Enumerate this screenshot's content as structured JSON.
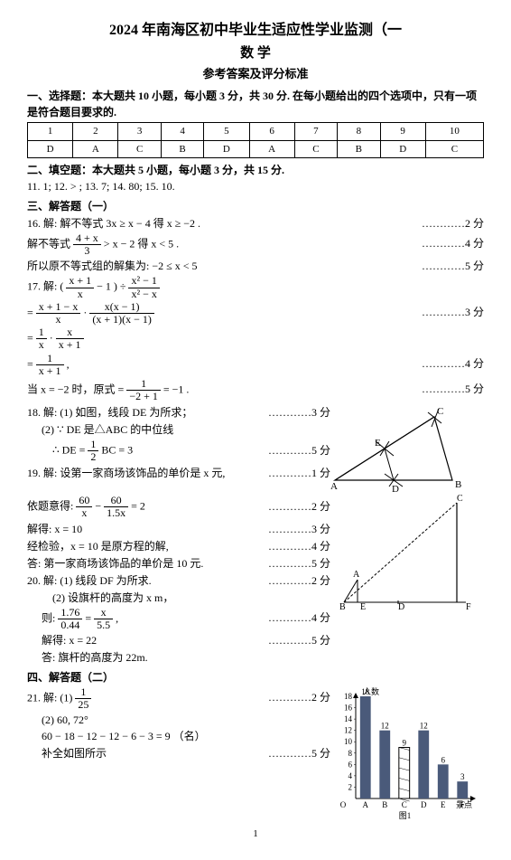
{
  "header": {
    "title": "2024 年南海区初中毕业生适应性学业监测（一",
    "subject": "数   学",
    "ans_title": "参考答案及评分标准"
  },
  "sec1": {
    "head": "一、选择题：本大题共 10 小题，每小题 3 分，共 30 分. 在每小题给出的四个选项中，只有一项是符合题目要求的.",
    "nums": [
      "1",
      "2",
      "3",
      "4",
      "5",
      "6",
      "7",
      "8",
      "9",
      "10"
    ],
    "ans": [
      "D",
      "A",
      "C",
      "B",
      "D",
      "A",
      "C",
      "B",
      "D",
      "C"
    ]
  },
  "sec2": {
    "head": "二、填空题：本大题共 5 小题，每小题 3 分，共 15 分.",
    "items": "11.  1;   12.  > ;   13.  7;   14.  80;   15.  10."
  },
  "sec3": {
    "head": "三、解答题（一）",
    "q16a_l": "16. 解: 解不等式 3x ≥ x − 4 得   x ≥ −2 .",
    "q16a_p": "…………2 分",
    "q16b_pre": "解不等式 ",
    "q16b_frac_num": "4 + x",
    "q16b_frac_den": "3",
    "q16b_post": " > x − 2 得   x < 5 .",
    "q16b_p": "…………4 分",
    "q16c_l": "所以原不等式组的解集为:   −2 ≤ x < 5",
    "q16c_p": "…………5 分",
    "q17a_pre": "17. 解:  ( ",
    "q17a_f1n": "x + 1",
    "q17a_f1d": "x",
    "q17a_mid": " − 1 ) ÷ ",
    "q17a_f2n": "x² − 1",
    "q17a_f2d": "x² − x",
    "q17b_pre": "= ",
    "q17b_f1n": "x + 1 − x",
    "q17b_f1d": "x",
    "q17b_mid": " · ",
    "q17b_f2n": "x(x − 1)",
    "q17b_f2d": "(x + 1)(x − 1)",
    "q17b_p": "…………3 分",
    "q17c_pre": "= ",
    "q17c_f1n": "1",
    "q17c_f1d": "x",
    "q17c_mid": " · ",
    "q17c_f2n": "x",
    "q17c_f2d": "x + 1",
    "q17d_pre": "= ",
    "q17d_fn": "1",
    "q17d_fd": "x + 1",
    "q17d_post": " ,",
    "q17d_p": "…………4 分",
    "q17e_pre": "当 x = −2 时，原式 = ",
    "q17e_fn": "1",
    "q17e_fd": "−2 + 1",
    "q17e_post": " = −1 .",
    "q17e_p": "…………5 分",
    "q18a_l": "18.  解:   (1) 如图，线段 DE 为所求；",
    "q18a_p": "…………3 分",
    "q18b_l": "(2) ∵ DE 是△ABC 的中位线",
    "q18c_pre": "∴   DE = ",
    "q18c_fn": "1",
    "q18c_fd": "2",
    "q18c_post": "BC = 3",
    "q18c_p": "…………5 分",
    "q19a_l": "19.  解: 设第一家商场该饰品的单价是 x 元,",
    "q19a_p": "…………1 分",
    "q19b_pre": "依题意得: ",
    "q19b_f1n": "60",
    "q19b_f1d": "x",
    "q19b_mid": " − ",
    "q19b_f2n": "60",
    "q19b_f2d": "1.5x",
    "q19b_post": " = 2",
    "q19b_p": "…………2 分",
    "q19c_l": "解得:   x = 10",
    "q19c_p": "…………3 分",
    "q19d_l": "经检验，x = 10 是原方程的解,",
    "q19d_p": "…………4 分",
    "q19e_l": "答: 第一家商场该饰品的单价是 10 元.",
    "q19e_p": "…………5 分",
    "q20a_l": "20.  解:    (1)  线段 DF 为所求.",
    "q20a_p": "…………2 分",
    "q20b_l": "(2) 设旗杆的高度为 x m，",
    "q20c_pre": "则: ",
    "q20c_f1n": "1.76",
    "q20c_f1d": "0.44",
    "q20c_mid": " = ",
    "q20c_f2n": "x",
    "q20c_f2d": "5.5",
    "q20c_post": " ,",
    "q20c_p": "…………4 分",
    "q20d_l": "解得:   x = 22",
    "q20d_p": "…………5 分",
    "q20e_l": "答:  旗杆的高度为 22m."
  },
  "sec4": {
    "head": "四、解答题（二）",
    "q21a_pre": "21.  解:   (1) ",
    "q21a_fn": "1",
    "q21a_fd": "25",
    "q21a_p": "…………2 分",
    "q21b_l": "(2)  60,    72°",
    "q21c_l": "60 − 18 − 12 − 12 − 6 − 3 = 9 （名）",
    "q21d_l": "补全如图所示",
    "q21d_p": "…………5 分"
  },
  "chart": {
    "type": "bar",
    "ylabel": "人数",
    "xlabel": "景点",
    "categories": [
      "A",
      "B",
      "C",
      "D",
      "E",
      "F"
    ],
    "values": [
      18,
      12,
      9,
      12,
      6,
      3
    ],
    "yticks": [
      2,
      4,
      6,
      8,
      10,
      12,
      14,
      16,
      18
    ],
    "bar_color": "#4a5a7a",
    "highlight_index": 2,
    "highlight_pattern": "hatch",
    "background": "#ffffff",
    "fig_label": "图1"
  },
  "triangle": {
    "points": {
      "A": [
        5,
        85
      ],
      "B": [
        70,
        85
      ],
      "D": [
        70,
        85
      ],
      "C": [
        125,
        15
      ],
      "E": [
        55,
        45
      ]
    },
    "labels": {
      "A": "A",
      "B": "B",
      "C": "C",
      "D": "D",
      "E": "E"
    }
  },
  "flagpole": {
    "labels": {
      "A": "A",
      "B": "B",
      "C": "C",
      "D": "D",
      "E": "E",
      "F": "F"
    }
  },
  "footer": "1"
}
